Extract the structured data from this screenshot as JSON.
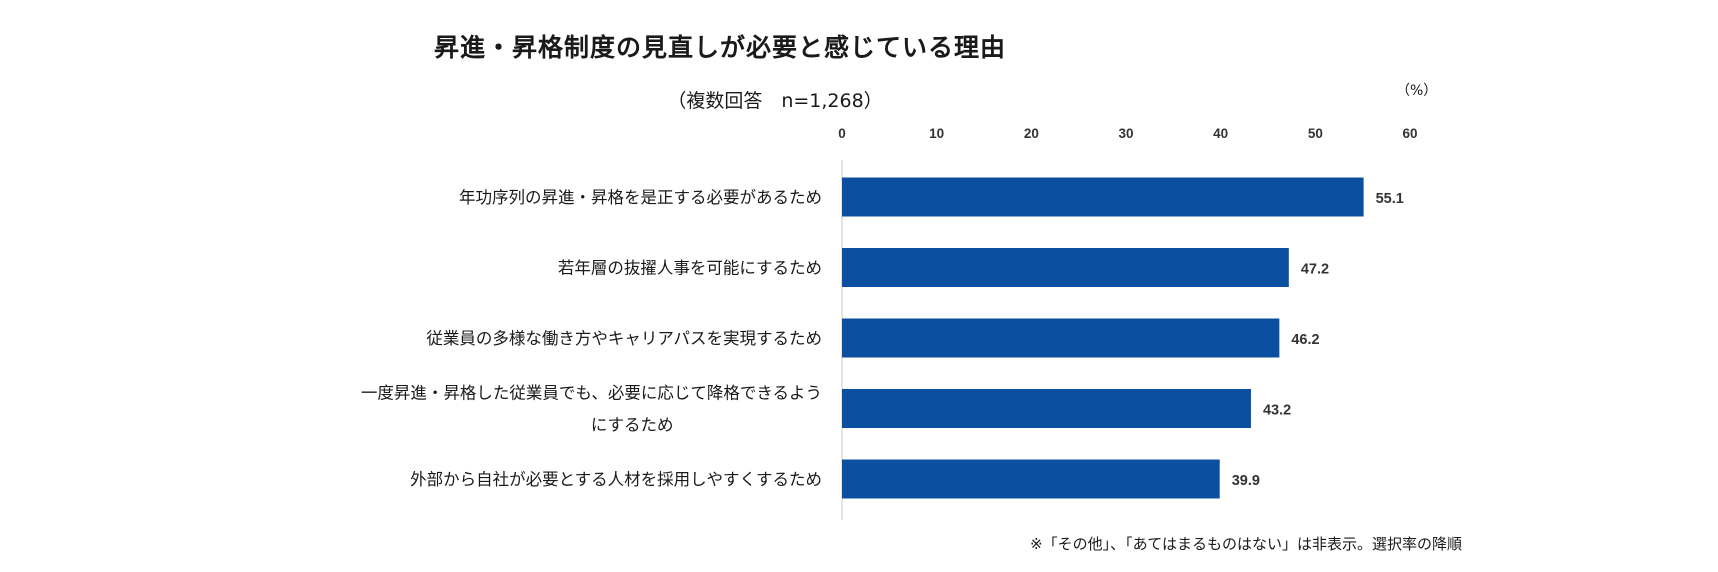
{
  "chart_data": {
    "type": "bar",
    "orientation": "horizontal",
    "title": "昇進・昇格制度の見直しが必要と感じている理由",
    "subtitle": "（複数回答　n=1,268）",
    "unit": "（%）",
    "categories": [
      "年功序列の昇進・昇格を是正する必要があるため",
      "若年層の抜擢人事を可能にするため",
      "従業員の多様な働き方やキャリアパスを実現するため",
      "一度昇進・昇格した従業員でも、必要に応じて降格できるようにするため",
      "外部から自社が必要とする人材を採用しやすくするため"
    ],
    "category_lines": [
      [
        "年功序列の昇進・昇格を是正する必要があるため"
      ],
      [
        "若年層の抜擢人事を可能にするため"
      ],
      [
        "従業員の多様な働き方やキャリアパスを実現するため"
      ],
      [
        "一度昇進・昇格した従業員でも、必要に応じて降格できるよう",
        "にするため"
      ],
      [
        "外部から自社が必要とする人材を採用しやすくするため"
      ]
    ],
    "values": [
      55.1,
      47.2,
      46.2,
      43.2,
      39.9
    ],
    "value_labels": [
      "55.1",
      "47.2",
      "46.2",
      "43.2",
      "39.9"
    ],
    "xlim": [
      0,
      60
    ],
    "ticks": [
      0,
      10,
      20,
      30,
      40,
      50,
      60
    ],
    "tick_position": "top",
    "grid": false,
    "bar_color": "#0b4fa1",
    "footnote": "※「その他」、「あてはまるものはない」は非表示。選択率の降順"
  }
}
